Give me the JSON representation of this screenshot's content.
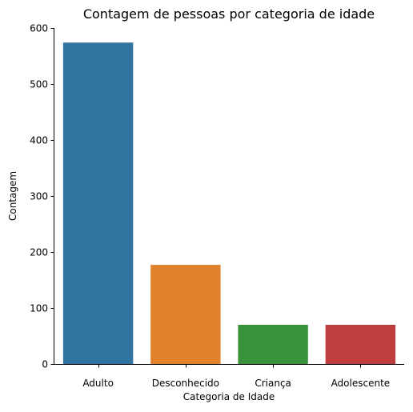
{
  "chart_data": {
    "type": "bar",
    "title": "Contagem de pessoas por categoria de idade",
    "xlabel": "Categoria de Idade",
    "ylabel": "Contagem",
    "categories": [
      "Adulto",
      "Desconhecido",
      "Criança",
      "Adolescente"
    ],
    "values": [
      574,
      177,
      70,
      70
    ],
    "colors": [
      "#3274a1",
      "#e1812c",
      "#3a923a",
      "#c03d3e"
    ],
    "ylim": [
      0,
      600
    ],
    "yticks": [
      0,
      100,
      200,
      300,
      400,
      500,
      600
    ],
    "grid": false,
    "legend": "none"
  }
}
